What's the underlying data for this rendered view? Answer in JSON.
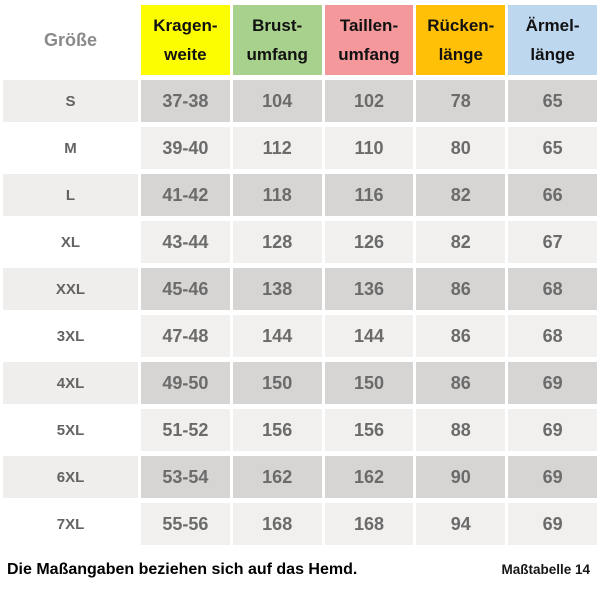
{
  "table": {
    "size_header": "Größe",
    "columns": [
      {
        "key": "kragenweite",
        "line1": "Kragen-",
        "line2": "weite",
        "bg": "#fdfd02"
      },
      {
        "key": "brustumfang",
        "line1": "Brust-",
        "line2": "umfang",
        "bg": "#a9d18e"
      },
      {
        "key": "taillenumfang",
        "line1": "Taillen-",
        "line2": "umfang",
        "bg": "#f4989b"
      },
      {
        "key": "rueckenlaenge",
        "line1": "Rücken-",
        "line2": "länge",
        "bg": "#ffc007"
      },
      {
        "key": "aermellaenge",
        "line1": "Ärmel-",
        "line2": "länge",
        "bg": "#bdd7ee"
      }
    ],
    "rows": [
      {
        "size": "S",
        "values": [
          "37-38",
          "104",
          "102",
          "78",
          "65"
        ]
      },
      {
        "size": "M",
        "values": [
          "39-40",
          "112",
          "110",
          "80",
          "65"
        ]
      },
      {
        "size": "L",
        "values": [
          "41-42",
          "118",
          "116",
          "82",
          "66"
        ]
      },
      {
        "size": "XL",
        "values": [
          "43-44",
          "128",
          "126",
          "82",
          "67"
        ]
      },
      {
        "size": "XXL",
        "values": [
          "45-46",
          "138",
          "136",
          "86",
          "68"
        ]
      },
      {
        "size": "3XL",
        "values": [
          "47-48",
          "144",
          "144",
          "86",
          "68"
        ]
      },
      {
        "size": "4XL",
        "values": [
          "49-50",
          "150",
          "150",
          "86",
          "69"
        ]
      },
      {
        "size": "5XL",
        "values": [
          "51-52",
          "156",
          "156",
          "88",
          "69"
        ]
      },
      {
        "size": "6XL",
        "values": [
          "53-54",
          "162",
          "162",
          "90",
          "69"
        ]
      },
      {
        "size": "7XL",
        "values": [
          "55-56",
          "168",
          "168",
          "94",
          "69"
        ]
      }
    ]
  },
  "footer": {
    "note": "Die Maßangaben beziehen sich auf das Hemd.",
    "table_ref": "Maßtabelle 14"
  }
}
